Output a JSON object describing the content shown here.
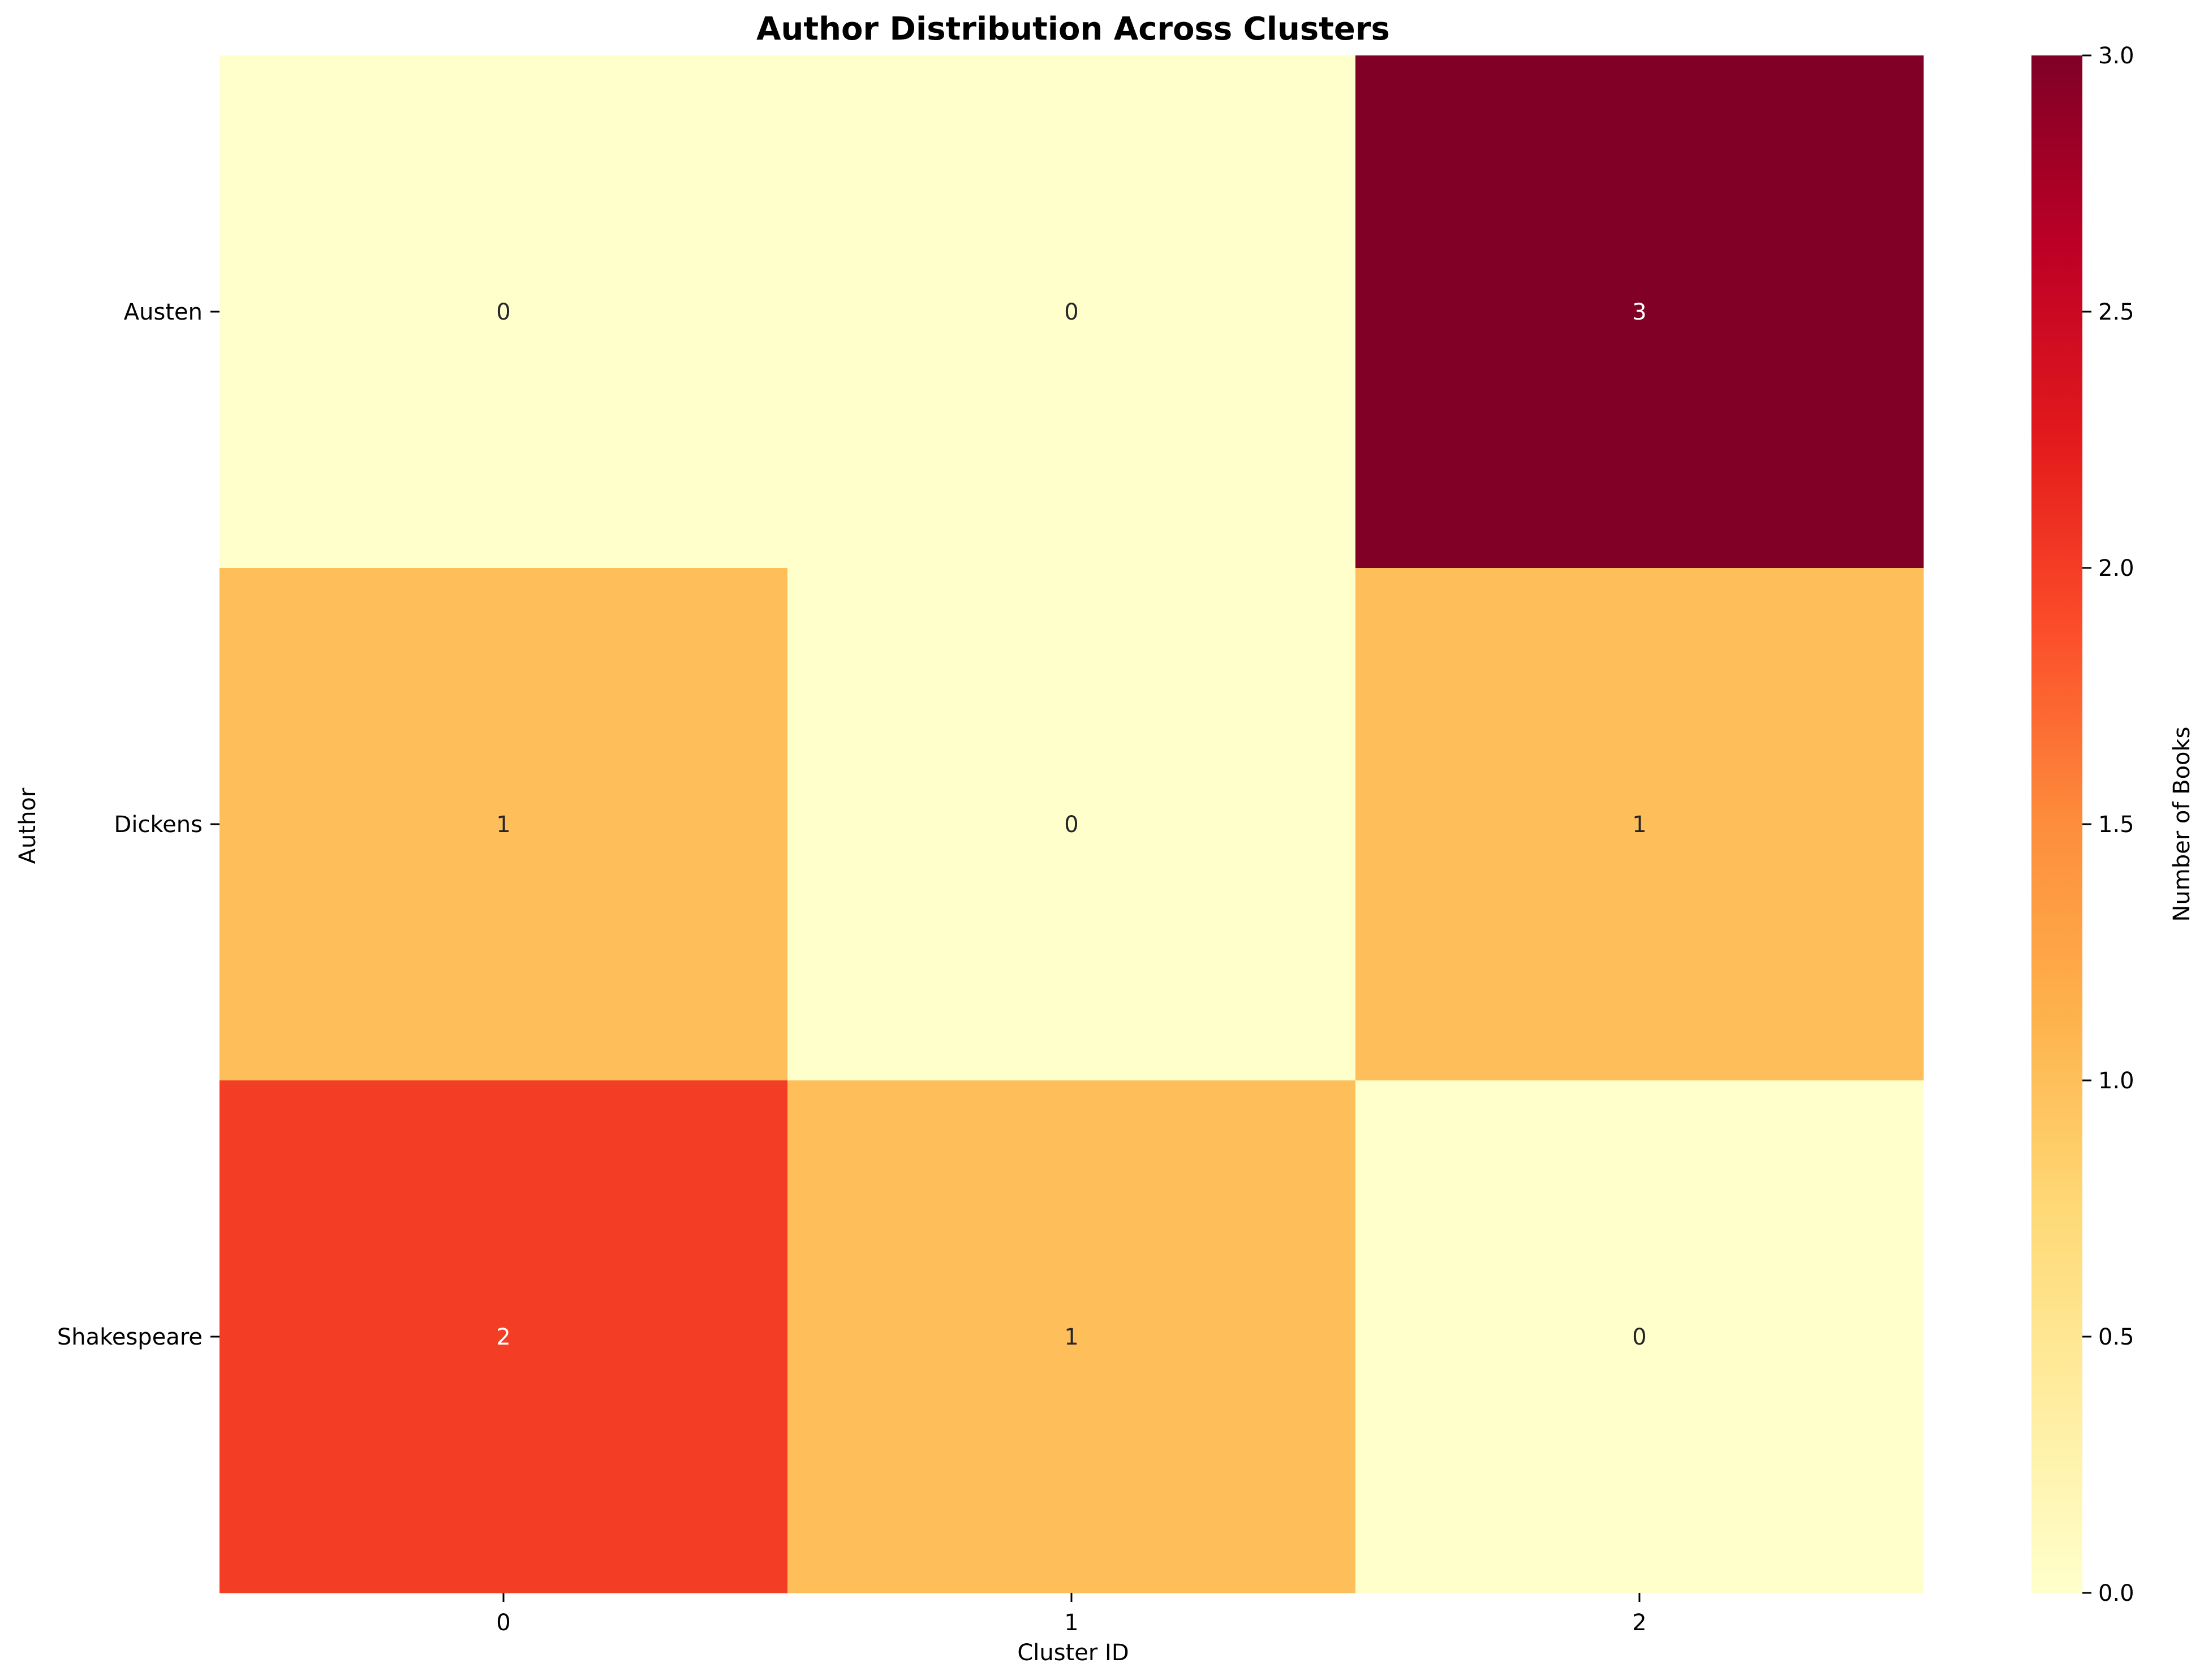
{
  "chart_data": {
    "type": "heatmap",
    "title": "Author Distribution Across Clusters",
    "xlabel": "Cluster ID",
    "ylabel": "Author",
    "x_categories": [
      "0",
      "1",
      "2"
    ],
    "y_categories": [
      "Austen",
      "Dickens",
      "Shakespeare"
    ],
    "values": [
      [
        0,
        0,
        3
      ],
      [
        1,
        0,
        1
      ],
      [
        2,
        1,
        0
      ]
    ],
    "value_range": [
      0,
      3
    ],
    "colormap": "YlOrRd",
    "colorbar": {
      "label": "Number of Books",
      "ticks": [
        "0.0",
        "0.5",
        "1.0",
        "1.5",
        "2.0",
        "2.5",
        "3.0"
      ],
      "tick_values": [
        0,
        0.5,
        1,
        1.5,
        2,
        2.5,
        3
      ]
    },
    "grid": false
  }
}
